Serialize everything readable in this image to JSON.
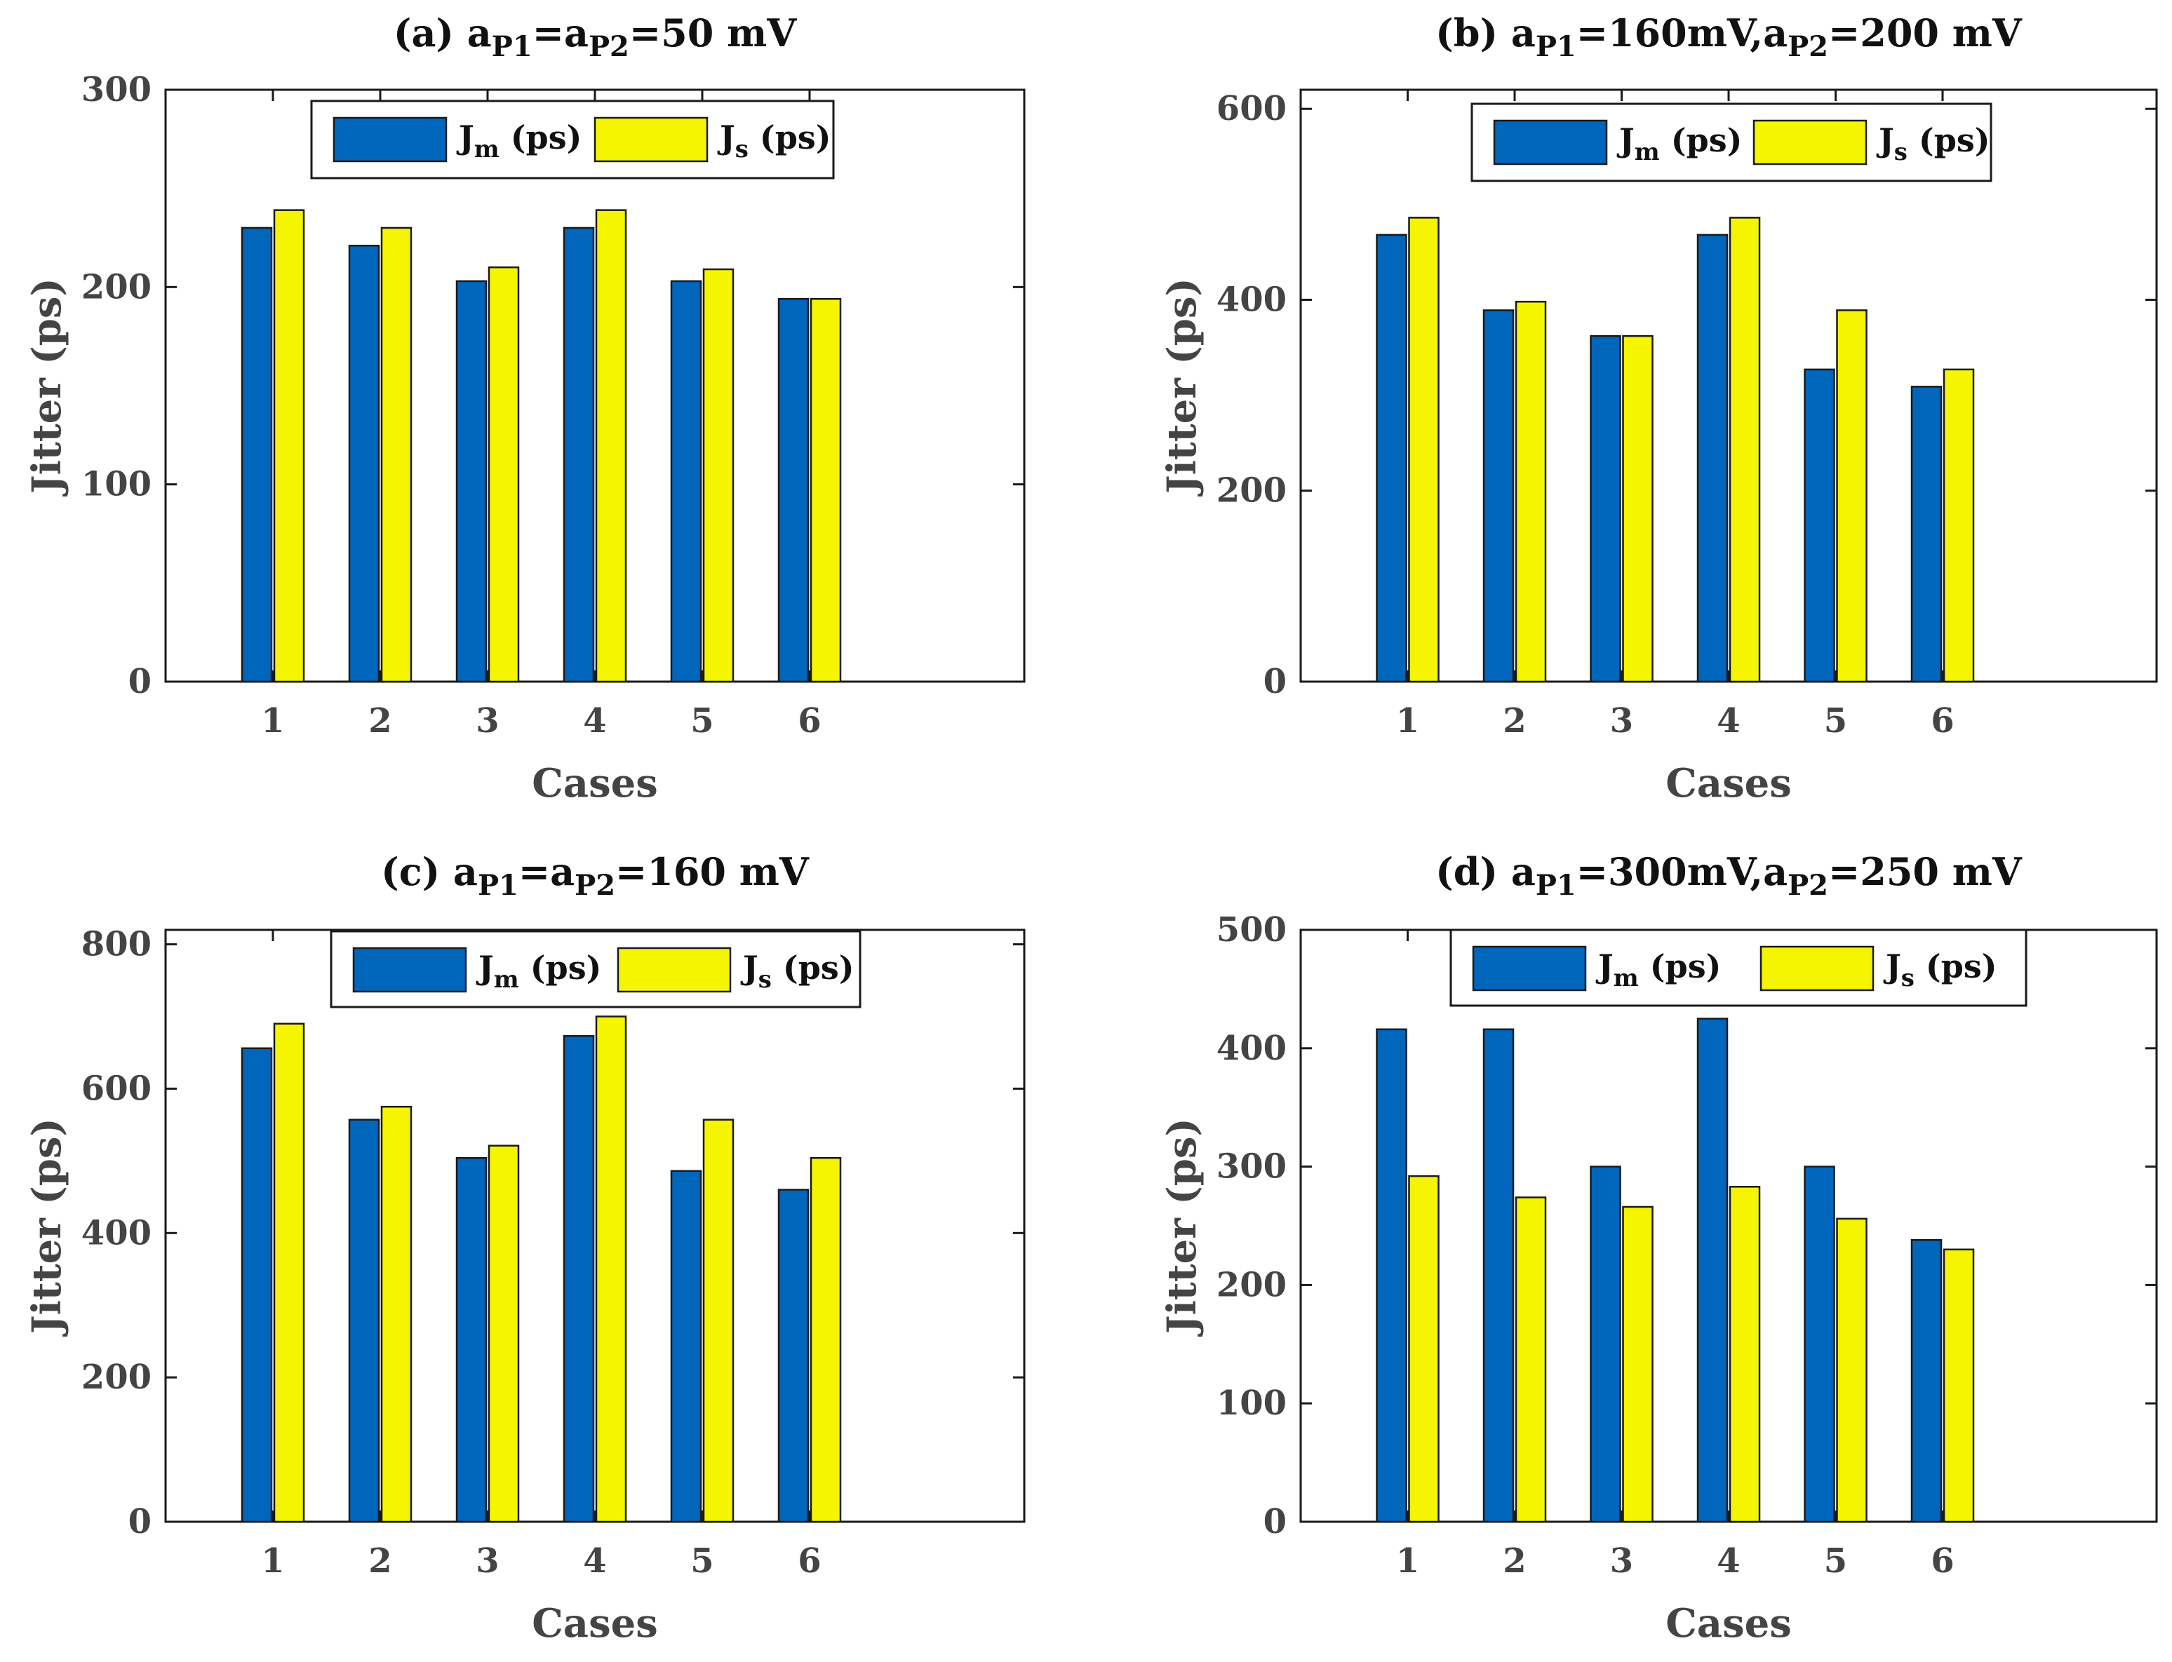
{
  "chart_data": [
    {
      "type": "bar",
      "title": "(a) aP1=aP2=50 mV",
      "title_parts": [
        "(a) a",
        "P1",
        "=a",
        "P2",
        "=50 mV"
      ],
      "xlabel": "Cases",
      "ylabel": "Jitter (ps)",
      "categories": [
        "1",
        "2",
        "3",
        "4",
        "5",
        "6"
      ],
      "xlim": [
        0,
        8
      ],
      "ylim": [
        0,
        300
      ],
      "yticks": [
        0,
        100,
        200,
        300
      ],
      "legend_location": "top-center",
      "series": [
        {
          "name": "Jm (ps)",
          "label_main": "J",
          "label_sub": "m",
          "label_unit": " (ps)",
          "color": "#0066bb",
          "values": [
            230,
            221,
            203,
            230,
            203,
            194
          ]
        },
        {
          "name": "Js (ps)",
          "label_main": "J",
          "label_sub": "s",
          "label_unit": " (ps)",
          "color": "#f5f500",
          "values": [
            239,
            230,
            210,
            239,
            209,
            194
          ]
        }
      ]
    },
    {
      "type": "bar",
      "title": "(b) aP1=160mV,aP2=200 mV",
      "title_parts": [
        "(b) a",
        "P1",
        "=160mV,a",
        "P2",
        "=200 mV"
      ],
      "xlabel": "Cases",
      "ylabel": "Jitter (ps)",
      "categories": [
        "1",
        "2",
        "3",
        "4",
        "5",
        "6"
      ],
      "xlim": [
        0,
        8
      ],
      "ylim": [
        0,
        620
      ],
      "yticks": [
        0,
        200,
        400,
        600
      ],
      "legend_location": "top-center",
      "series": [
        {
          "name": "Jm (ps)",
          "label_main": "J",
          "label_sub": "m",
          "label_unit": " (ps)",
          "color": "#0066bb",
          "values": [
            468,
            389,
            362,
            468,
            327,
            309
          ]
        },
        {
          "name": "Js (ps)",
          "label_main": "J",
          "label_sub": "s",
          "label_unit": " (ps)",
          "color": "#f5f500",
          "values": [
            486,
            398,
            362,
            486,
            389,
            327
          ]
        }
      ]
    },
    {
      "type": "bar",
      "title": "(c) aP1=aP2=160 mV",
      "title_parts": [
        "(c) a",
        "P1",
        "=a",
        "P2",
        "=160 mV"
      ],
      "xlabel": "Cases",
      "ylabel": "Jitter (ps)",
      "categories": [
        "1",
        "2",
        "3",
        "4",
        "5",
        "6"
      ],
      "xlim": [
        0,
        8
      ],
      "ylim": [
        0,
        820
      ],
      "yticks": [
        0,
        200,
        400,
        600,
        800
      ],
      "legend_location": "top-center",
      "series": [
        {
          "name": "Jm (ps)",
          "label_main": "J",
          "label_sub": "m",
          "label_unit": " (ps)",
          "color": "#0066bb",
          "values": [
            656,
            557,
            504,
            673,
            486,
            460
          ]
        },
        {
          "name": "Js (ps)",
          "label_main": "J",
          "label_sub": "s",
          "label_unit": " (ps)",
          "color": "#f5f500",
          "values": [
            690,
            575,
            521,
            700,
            557,
            504
          ]
        }
      ]
    },
    {
      "type": "bar",
      "title": "(d) aP1=300mV,aP2=250 mV",
      "title_parts": [
        "(d) a",
        "P1",
        "=300mV,a",
        "P2",
        "=250 mV"
      ],
      "xlabel": "Cases",
      "ylabel": "Jitter (ps)",
      "categories": [
        "1",
        "2",
        "3",
        "4",
        "5",
        "6"
      ],
      "xlim": [
        0,
        8
      ],
      "ylim": [
        0,
        500
      ],
      "yticks": [
        0,
        100,
        200,
        300,
        400,
        500
      ],
      "legend_location": "top-center",
      "series": [
        {
          "name": "Jm (ps)",
          "label_main": "J",
          "label_sub": "m",
          "label_unit": " (ps)",
          "color": "#0066bb",
          "values": [
            416,
            416,
            300,
            425,
            300,
            238
          ]
        },
        {
          "name": "Js (ps)",
          "label_main": "J",
          "label_sub": "s",
          "label_unit": " (ps)",
          "color": "#f5f500",
          "values": [
            292,
            274,
            266,
            283,
            256,
            230
          ]
        }
      ]
    }
  ]
}
